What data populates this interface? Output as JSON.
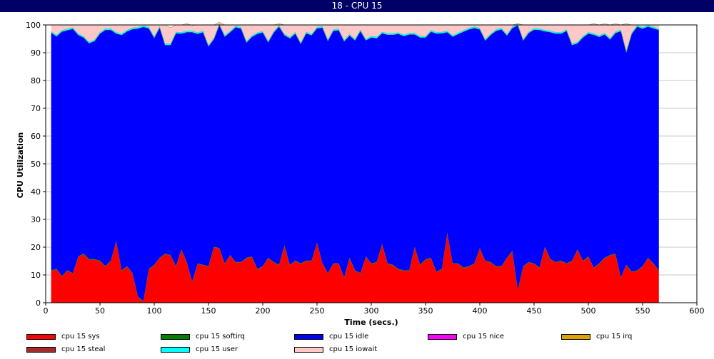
{
  "window": {
    "title": "18 - CPU 15"
  },
  "chart_data": {
    "type": "area",
    "stacked": true,
    "title": "18 - CPU 15",
    "xlabel": "Time (secs.)",
    "ylabel": "CPU Utilization",
    "xlim": [
      0,
      600
    ],
    "ylim": [
      0,
      100
    ],
    "xticks": [
      0,
      50,
      100,
      150,
      200,
      250,
      300,
      350,
      400,
      450,
      500,
      550,
      600
    ],
    "yticks": [
      0,
      10,
      20,
      30,
      40,
      50,
      60,
      70,
      80,
      90,
      100
    ],
    "grid": "horizontal",
    "legend_position": "bottom",
    "x": [
      5,
      10,
      15,
      20,
      25,
      30,
      35,
      40,
      45,
      50,
      55,
      60,
      65,
      70,
      75,
      80,
      85,
      90,
      95,
      100,
      105,
      110,
      115,
      120,
      125,
      130,
      135,
      140,
      145,
      150,
      155,
      160,
      165,
      170,
      175,
      180,
      185,
      190,
      195,
      200,
      205,
      210,
      215,
      220,
      225,
      230,
      235,
      240,
      245,
      250,
      255,
      260,
      265,
      270,
      275,
      280,
      285,
      290,
      295,
      300,
      305,
      310,
      315,
      320,
      325,
      330,
      335,
      340,
      345,
      350,
      355,
      360,
      365,
      370,
      375,
      380,
      385,
      390,
      395,
      400,
      405,
      410,
      415,
      420,
      425,
      430,
      435,
      440,
      445,
      450,
      455,
      460,
      465,
      470,
      475,
      480,
      485,
      490,
      495,
      500,
      505,
      510,
      515,
      520,
      525,
      530,
      535,
      540,
      545,
      550,
      555,
      560,
      565
    ],
    "series": [
      {
        "name": "cpu 15 sys",
        "color": "#ff0000",
        "values": [
          11.5,
          12,
          9.5,
          11.5,
          10.5,
          16.5,
          17.5,
          15.5,
          15.5,
          15,
          13,
          15,
          22,
          11.5,
          13,
          10.5,
          2,
          0.5,
          12,
          13.5,
          16,
          17.5,
          17,
          13,
          19,
          14.5,
          7.5,
          14,
          13.5,
          13,
          20,
          19.5,
          14,
          17,
          14.5,
          14.5,
          16,
          16.5,
          12,
          13,
          16,
          14.5,
          13.5,
          20.5,
          13.5,
          15,
          14,
          15,
          15,
          21.5,
          14,
          10.5,
          14,
          14,
          9,
          16,
          11.5,
          10.5,
          16.5,
          14,
          14.5,
          21,
          14,
          13.5,
          12,
          11.5,
          11.5,
          20,
          13.5,
          15.5,
          16,
          11,
          12,
          25,
          14,
          14,
          12.5,
          13,
          14,
          19.5,
          15,
          14.5,
          13,
          13,
          16,
          18.5,
          4.5,
          13,
          14.5,
          14,
          12.5,
          20,
          15.5,
          14.5,
          15,
          14,
          15,
          19,
          15,
          16.5,
          12.5,
          14,
          16,
          17,
          17.5,
          9,
          13.5,
          11,
          11.5,
          13,
          16,
          14,
          11.5
        ]
      },
      {
        "name": "cpu 15 softirq",
        "color": "#008000",
        "values": [
          0.2,
          0.2,
          0.2,
          0.2,
          0.2,
          0.2,
          0.2,
          0.2,
          0.2,
          0.2,
          0.2,
          0.2,
          0.2,
          0.2,
          0.2,
          0.2,
          0.2,
          0.2,
          0.2,
          0.2,
          0.2,
          0.2,
          0.2,
          0.2,
          0.2,
          0.2,
          0.2,
          0.2,
          0.2,
          0.2,
          0.2,
          0.2,
          0.2,
          0.2,
          0.2,
          0.2,
          0.2,
          0.2,
          0.2,
          0.2,
          0.2,
          0.2,
          0.2,
          0.2,
          0.2,
          0.2,
          0.2,
          0.2,
          0.2,
          0.2,
          0.2,
          0.2,
          0.2,
          0.2,
          0.2,
          0.2,
          0.2,
          0.2,
          0.2,
          0.2,
          0.2,
          0.2,
          0.2,
          0.2,
          0.2,
          0.2,
          0.2,
          0.2,
          0.2,
          0.2,
          0.2,
          0.2,
          0.2,
          0.2,
          0.2,
          0.2,
          0.2,
          0.2,
          0.2,
          0.2,
          0.2,
          0.2,
          0.2,
          0.2,
          0.2,
          0.2,
          0.2,
          0.2,
          0.2,
          0.2,
          0.2,
          0.2,
          0.2,
          0.2,
          0.2,
          0.2,
          0.2,
          0.2,
          0.2,
          0.2,
          0.2,
          0.2,
          0.2,
          0.2,
          0.2,
          0.2,
          0.2,
          0.2,
          0.2,
          0.2,
          0.2,
          0.2,
          0.2
        ]
      },
      {
        "name": "cpu 15 idle",
        "color": "#0000ff",
        "values": [
          85.5,
          83.7,
          87.9,
          86.4,
          87.9,
          79.7,
          77.7,
          77.7,
          78.5,
          81.7,
          85,
          83,
          74.7,
          84.7,
          84.5,
          87.8,
          96.5,
          98.6,
          86.6,
          81.6,
          82.8,
          75.1,
          75.6,
          83.8,
          77.7,
          82.7,
          89.7,
          82.6,
          83.7,
          79.1,
          74.7,
          80.3,
          81.6,
          80.2,
          84.5,
          84,
          77.5,
          79,
          84.6,
          84.1,
          77.6,
          82.5,
          85.7,
          75.6,
          81.5,
          81.7,
          79,
          81.8,
          81.1,
          77.1,
          84.8,
          83.6,
          83.7,
          83.9,
          84.9,
          80,
          82.8,
          87.1,
          77.8,
          81.3,
          80.5,
          75.8,
          82.3,
          82.8,
          84.6,
          84.3,
          84.9,
          76.4,
          81.8,
          79.8,
          81.4,
          85.7,
          84.8,
          72.2,
          81.6,
          82.5,
          84.9,
          85.2,
          84.7,
          78.7,
          79.2,
          81.7,
          84.7,
          85.2,
          80,
          80.2,
          95.2,
          81.2,
          82.4,
          84.1,
          85.5,
          77.5,
          81.7,
          82.2,
          81.7,
          83.7,
          77.6,
          74.2,
          80.3,
          80.2,
          83.8,
          81.5,
          80.4,
          77.6,
          79.4,
          88.6,
          76.5,
          85.6,
          87.7,
          85.5,
          83.2,
          84.6,
          86.5
        ]
      },
      {
        "name": "cpu 15 nice",
        "color": "#ff00ff",
        "values": [
          0,
          0,
          0,
          0,
          0,
          0,
          0,
          0,
          0,
          0,
          0,
          0,
          0,
          0,
          0,
          0,
          0,
          0,
          0,
          0,
          0,
          0,
          0,
          0,
          0,
          0,
          0,
          0,
          0,
          0,
          0,
          0,
          0,
          0,
          0,
          0,
          0,
          0,
          0,
          0,
          0,
          0,
          0,
          0,
          0,
          0,
          0,
          0,
          0,
          0,
          0,
          0,
          0,
          0,
          0,
          0,
          0,
          0,
          0,
          0,
          0,
          0,
          0,
          0,
          0,
          0,
          0,
          0,
          0,
          0,
          0,
          0,
          0,
          0,
          0,
          0,
          0,
          0,
          0,
          0,
          0,
          0,
          0,
          0,
          0,
          0,
          0,
          0,
          0,
          0,
          0,
          0,
          0,
          0,
          0,
          0,
          0,
          0,
          0,
          0,
          0,
          0,
          0,
          0,
          0,
          0,
          0,
          0,
          0,
          0,
          0,
          0,
          0
        ]
      },
      {
        "name": "cpu 15 irq",
        "color": "#e0a000",
        "values": [
          0,
          0,
          0,
          0,
          0,
          0,
          0,
          0,
          0,
          0,
          0,
          0,
          0,
          0,
          0,
          0,
          0,
          0,
          0,
          0,
          0,
          0,
          0,
          0,
          0,
          0,
          0,
          0,
          0,
          0,
          0,
          0,
          0,
          0,
          0,
          0,
          0,
          0,
          0,
          0,
          0,
          0,
          0,
          0,
          0,
          0,
          0,
          0,
          0,
          0,
          0,
          0,
          0,
          0,
          0,
          0,
          0,
          0,
          0,
          0,
          0,
          0,
          0,
          0,
          0,
          0,
          0,
          0,
          0,
          0,
          0,
          0,
          0,
          0,
          0,
          0,
          0,
          0,
          0,
          0,
          0,
          0,
          0,
          0,
          0,
          0,
          0,
          0,
          0,
          0,
          0,
          0,
          0,
          0,
          0,
          0,
          0,
          0,
          0,
          0,
          0,
          0,
          0,
          0,
          0,
          0,
          0,
          0,
          0,
          0,
          0,
          0,
          0
        ]
      },
      {
        "name": "cpu 15 steal",
        "color": "#a52a2a",
        "values": [
          0,
          0,
          0,
          0,
          0,
          0,
          0,
          0,
          0,
          0,
          0,
          0,
          0,
          0,
          0,
          0,
          0,
          0,
          0,
          0,
          0,
          0,
          0,
          0,
          0,
          0,
          0,
          0,
          0,
          0,
          0,
          0,
          0,
          0,
          0,
          0,
          0,
          0,
          0,
          0,
          0,
          0,
          0,
          0,
          0,
          0,
          0,
          0,
          0,
          0,
          0,
          0,
          0,
          0,
          0,
          0,
          0,
          0,
          0,
          0,
          0,
          0,
          0,
          0,
          0,
          0,
          0,
          0,
          0,
          0,
          0,
          0,
          0,
          0,
          0,
          0,
          0,
          0,
          0,
          0,
          0,
          0,
          0,
          0,
          0,
          0,
          0,
          0,
          0,
          0,
          0,
          0,
          0,
          0,
          0,
          0,
          0,
          0,
          0,
          0,
          0,
          0,
          0,
          0,
          0,
          0,
          0,
          0,
          0,
          0,
          0,
          0,
          0
        ]
      },
      {
        "name": "cpu 15 user",
        "color": "#00ffff",
        "values": [
          0.5,
          0.5,
          0.5,
          0.5,
          0.5,
          0.5,
          0.5,
          0.5,
          0.5,
          0.5,
          0.5,
          0.5,
          0.5,
          0.5,
          0.5,
          0.5,
          0.5,
          0.5,
          0.5,
          0.5,
          0.5,
          0.5,
          0.5,
          0.5,
          0.5,
          0.5,
          0.5,
          0.5,
          0.5,
          0.5,
          0.5,
          0.5,
          0.5,
          0.5,
          0.5,
          0.5,
          0.5,
          0.5,
          0.5,
          0.5,
          0.5,
          0.5,
          0.5,
          0.5,
          0.5,
          0.5,
          0.5,
          0.5,
          0.5,
          0.5,
          0.5,
          0.5,
          0.5,
          0.5,
          0.5,
          0.5,
          0.5,
          0.5,
          0.5,
          0.5,
          0.5,
          0.5,
          0.5,
          0.5,
          0.5,
          0.5,
          0.5,
          0.5,
          0.5,
          0.5,
          0.5,
          0.5,
          0.5,
          0.5,
          0.5,
          0.5,
          0.5,
          0.5,
          0.5,
          0.5,
          0.5,
          0.5,
          0.5,
          0.5,
          0.5,
          0.5,
          0.5,
          0.5,
          0.5,
          0.5,
          0.5,
          0.5,
          0.5,
          0.5,
          0.5,
          0.5,
          0.5,
          0.5,
          0.5,
          0.5,
          0.5,
          0.5,
          0.5,
          0.5,
          0.5,
          0.5,
          0.5,
          0.5,
          0.5,
          0.5,
          0.5,
          0.5,
          0.5
        ]
      },
      {
        "name": "cpu 15 iowait",
        "color": "#ffc8c8",
        "values": [
          2.3,
          3.6,
          1.9,
          1.4,
          0.9,
          3.1,
          4.1,
          6.1,
          5.3,
          2.6,
          1.3,
          1.3,
          2.6,
          3.1,
          1.8,
          1,
          0.8,
          0.2,
          0.7,
          4.2,
          0.5,
          6.7,
          5.7,
          2.5,
          2.6,
          2.6,
          1.9,
          2.7,
          2.1,
          7.2,
          4.6,
          0.5,
          3.7,
          2.1,
          0.3,
          0.8,
          5.8,
          3.8,
          2.7,
          2.2,
          5.7,
          2.3,
          0.6,
          3.2,
          4.3,
          2.6,
          6.3,
          2.5,
          3.2,
          0.7,
          0.5,
          5.2,
          1.6,
          1.4,
          5.4,
          3.3,
          5,
          1.7,
          5,
          4,
          4.3,
          2.5,
          3,
          3,
          2.7,
          3.5,
          2.9,
          2.9,
          4,
          4,
          1.9,
          2.6,
          2.5,
          2.1,
          3.7,
          2.8,
          1.9,
          1.1,
          0.6,
          1.1,
          5.1,
          3.1,
          1.6,
          1.1,
          3.3,
          0.6,
          0.1,
          5.1,
          2.4,
          1.2,
          1.3,
          1.8,
          2.1,
          2.6,
          2.6,
          1.6,
          6.7,
          6.1,
          4,
          2.6,
          3.5,
          3.8,
          3.4,
          4.7,
          2.9,
          1.7,
          9.8,
          2.7,
          0.1,
          0.8,
          0.1,
          0.7,
          1.3
        ]
      }
    ]
  }
}
